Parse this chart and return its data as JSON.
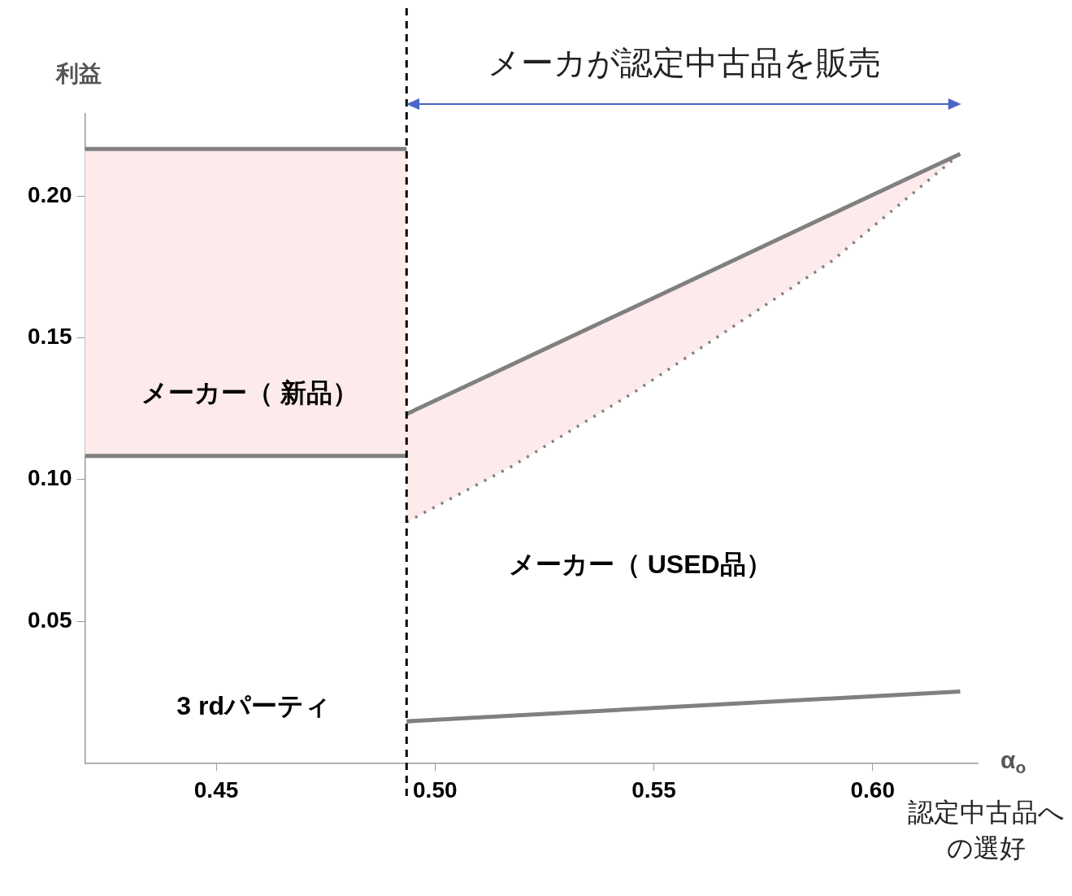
{
  "chart_data": {
    "type": "line",
    "xlabel": "α$_{o}$",
    "ylabel": "利益",
    "xlim": [
      0.42,
      0.624
    ],
    "ylim": [
      0,
      0.229
    ],
    "xticks": [
      {
        "value": 0.45,
        "label": "0.45"
      },
      {
        "value": 0.5,
        "label": "0.50"
      },
      {
        "value": 0.55,
        "label": "0.55"
      },
      {
        "value": 0.6,
        "label": "0.60"
      }
    ],
    "yticks": [
      {
        "value": 0.05,
        "label": "0.05"
      },
      {
        "value": 0.1,
        "label": "0.10"
      },
      {
        "value": 0.15,
        "label": "0.15"
      },
      {
        "value": 0.2,
        "label": "0.20"
      }
    ],
    "grid": false,
    "legend": false,
    "marker": "none",
    "series": [
      {
        "color": "#808080",
        "x": [
          0.42,
          0.4935
        ],
        "values": [
          0.2166,
          0.2166
        ],
        "lower": [
          0.1083,
          0.1083
        ],
        "upper": [
          0.2166,
          0.2166
        ]
      },
      {
        "color": "#808080",
        "x": [
          0.42,
          0.4935
        ],
        "values": [
          0.1083,
          0.1083
        ]
      },
      {
        "color": "#808080",
        "x": [
          0.4935,
          0.5176,
          0.5456,
          0.5906,
          0.62
        ],
        "values": [
          0.1231,
          0.1406,
          0.1609,
          0.1936,
          0.2149
        ],
        "lower": [
          0.085,
          0.1047,
          0.1309,
          0.177,
          0.2149
        ],
        "upper": [
          0.1231,
          0.1406,
          0.1609,
          0.1936,
          0.2149
        ]
      },
      {
        "color": "#808080",
        "line_style": "dotted",
        "x": [
          0.4935,
          0.5176,
          0.5456,
          0.5906,
          0.62
        ],
        "values": [
          0.085,
          0.1047,
          0.1309,
          0.177,
          0.2149
        ]
      },
      {
        "color": "#808080",
        "x": [
          0.4935,
          0.62
        ],
        "values": [
          0.0147,
          0.0252
        ]
      }
    ],
    "ref_lines": [
      {
        "axis": "x",
        "value": 0.4935,
        "color": "#000000",
        "line_style": "dashed"
      }
    ],
    "annotations": [
      "メーカが認定中古品を販売",
      "認定中古品への選好",
      "メーカー（ 新品）",
      "メーカー（ USED品）",
      "3 rdパーティ"
    ]
  }
}
